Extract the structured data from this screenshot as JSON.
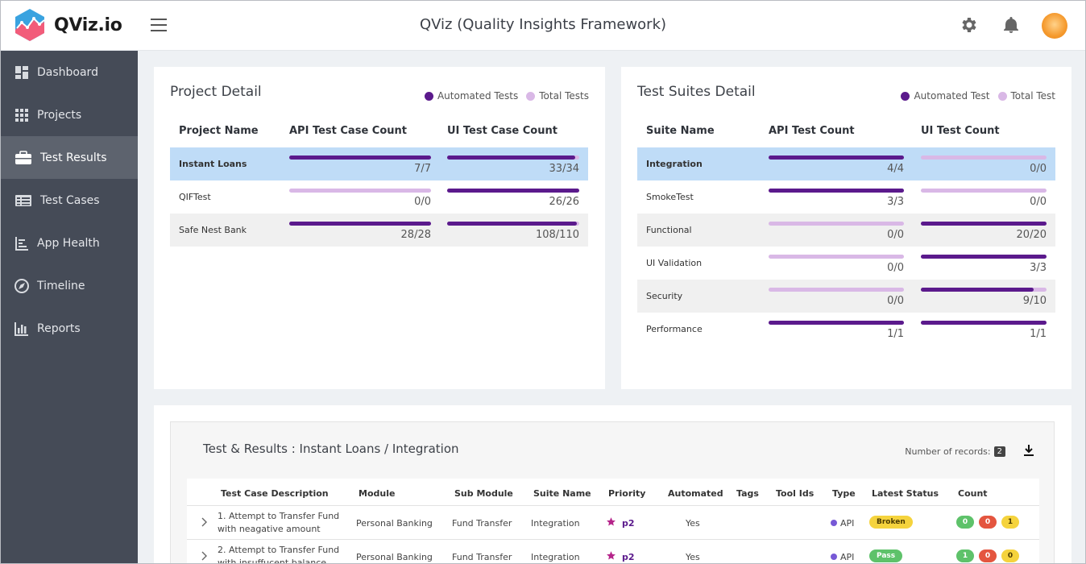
{
  "header": {
    "logo_text": "QViz.io",
    "title": "QViz (Quality Insights Framework)",
    "icons": [
      "gear-icon",
      "bell-icon",
      "avatar"
    ]
  },
  "sidebar": {
    "items": [
      {
        "label": "Dashboard",
        "icon": "dashboard-icon"
      },
      {
        "label": "Projects",
        "icon": "grid-icon"
      },
      {
        "label": "Test Results",
        "icon": "briefcase-icon",
        "active": true
      },
      {
        "label": "Test Cases",
        "icon": "table-icon"
      },
      {
        "label": "App Health",
        "icon": "app-health-icon"
      },
      {
        "label": "Timeline",
        "icon": "compass-icon"
      },
      {
        "label": "Reports",
        "icon": "bar-chart-icon"
      }
    ]
  },
  "colors": {
    "automated": "#5b1a8c",
    "total": "#d9b8e6",
    "selected_row": "#bfdcf7"
  },
  "project_detail": {
    "title": "Project Detail",
    "legend": {
      "automated": "Automated Tests",
      "total": "Total Tests"
    },
    "columns": [
      "Project Name",
      "API Test Case Count",
      "UI Test Case Count"
    ],
    "rows": [
      {
        "name": "Instant Loans",
        "api": "7/7",
        "api_frac": 1.0,
        "ui": "33/34",
        "ui_frac": 0.97,
        "selected": true
      },
      {
        "name": "QIFTest",
        "api": "0/0",
        "api_frac": 0,
        "ui": "26/26",
        "ui_frac": 1.0
      },
      {
        "name": "Safe Nest Bank",
        "api": "28/28",
        "api_frac": 1.0,
        "ui": "108/110",
        "ui_frac": 0.98
      }
    ]
  },
  "suites_detail": {
    "title": "Test Suites Detail",
    "legend": {
      "automated": "Automated Test",
      "total": "Total Test"
    },
    "columns": [
      "Suite Name",
      "API Test Count",
      "UI Test Count"
    ],
    "rows": [
      {
        "name": "Integration",
        "api": "4/4",
        "api_frac": 1.0,
        "ui": "0/0",
        "ui_frac": 0,
        "selected": true
      },
      {
        "name": "SmokeTest",
        "api": "3/3",
        "api_frac": 1.0,
        "ui": "0/0",
        "ui_frac": 0
      },
      {
        "name": "Functional",
        "api": "0/0",
        "api_frac": 0,
        "ui": "20/20",
        "ui_frac": 1.0
      },
      {
        "name": "UI Validation",
        "api": "0/0",
        "api_frac": 0,
        "ui": "3/3",
        "ui_frac": 1.0
      },
      {
        "name": "Security",
        "api": "0/0",
        "api_frac": 0,
        "ui": "9/10",
        "ui_frac": 0.9
      },
      {
        "name": "Performance",
        "api": "1/1",
        "api_frac": 1.0,
        "ui": "1/1",
        "ui_frac": 1.0
      }
    ]
  },
  "results": {
    "title": "Test & Results : Instant Loans / Integration",
    "records_label": "Number of records:",
    "records_count": "2",
    "columns": [
      "Test Case Description",
      "Module",
      "Sub Module",
      "Suite Name",
      "Priority",
      "Automated",
      "Tags",
      "Tool Ids",
      "Type",
      "Latest Status",
      "Count"
    ],
    "rows": [
      {
        "desc": "1. Attempt to Transfer Fund with neagative amount",
        "module": "Personal Banking",
        "sub_module": "Fund Transfer",
        "suite": "Integration",
        "priority": "p2",
        "automated": "Yes",
        "type": "API",
        "status": "Broken",
        "status_color": "#f5d33d",
        "counts": [
          "0",
          "0",
          "1"
        ]
      },
      {
        "desc": "2. Attempt to Transfer Fund with insuffucent balance",
        "module": "Personal Banking",
        "sub_module": "Fund Transfer",
        "suite": "Integration",
        "priority": "p2",
        "automated": "Yes",
        "type": "API",
        "status": "Pass",
        "status_color": "#5ec26a",
        "counts": [
          "1",
          "0",
          "0"
        ]
      }
    ]
  }
}
